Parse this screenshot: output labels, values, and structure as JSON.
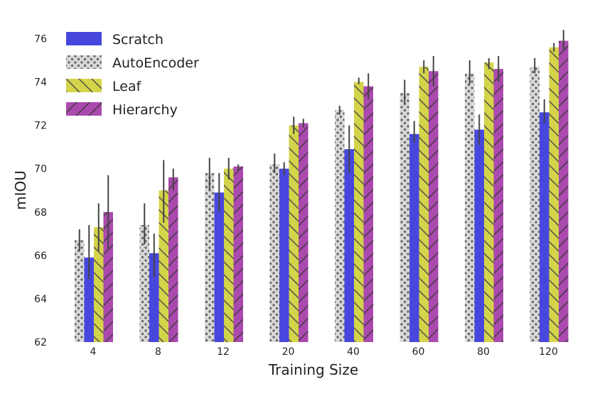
{
  "chart_data": {
    "type": "bar",
    "xlabel": "Training Size",
    "ylabel": "mIOU",
    "categories": [
      "4",
      "8",
      "12",
      "20",
      "40",
      "60",
      "80",
      "120"
    ],
    "ylim": [
      62,
      76.8
    ],
    "yticks": [
      62,
      64,
      66,
      68,
      70,
      72,
      74,
      76
    ],
    "grid": false,
    "legend_position": "top-left",
    "series": [
      {
        "name": "AutoEncoder",
        "color": "#d9d9d9",
        "pattern": "dots",
        "values": [
          66.7,
          67.4,
          69.8,
          70.2,
          72.7,
          73.5,
          74.4,
          74.7
        ],
        "err_low": [
          66.2,
          66.5,
          69.0,
          69.8,
          72.5,
          73.0,
          73.9,
          74.4
        ],
        "err_high": [
          67.2,
          68.4,
          70.5,
          70.7,
          72.9,
          74.1,
          75.0,
          75.1
        ]
      },
      {
        "name": "Scratch",
        "color": "#4747de",
        "pattern": "solid",
        "values": [
          65.9,
          66.1,
          68.9,
          70.0,
          70.9,
          71.6,
          71.8,
          72.6
        ],
        "err_low": [
          64.9,
          65.0,
          68.0,
          69.7,
          69.8,
          71.2,
          71.1,
          72.1
        ],
        "err_high": [
          67.4,
          67.0,
          69.8,
          70.3,
          72.0,
          72.2,
          72.5,
          73.2
        ]
      },
      {
        "name": "Leaf",
        "color": "#d4d44a",
        "pattern": "backslash",
        "values": [
          67.3,
          69.0,
          70.0,
          72.0,
          74.0,
          74.7,
          74.9,
          75.6
        ],
        "err_low": [
          66.2,
          67.5,
          69.5,
          71.6,
          73.9,
          74.4,
          74.6,
          75.4
        ],
        "err_high": [
          68.4,
          70.4,
          70.5,
          72.4,
          74.2,
          75.0,
          75.1,
          75.8
        ]
      },
      {
        "name": "Hierarchy",
        "color": "#aa4aae",
        "pattern": "slash",
        "values": [
          68.0,
          69.6,
          70.1,
          72.1,
          73.8,
          74.5,
          74.6,
          75.9
        ],
        "err_low": [
          66.3,
          69.0,
          69.9,
          71.9,
          73.2,
          73.8,
          74.0,
          75.5
        ],
        "err_high": [
          69.7,
          70.0,
          70.2,
          72.3,
          74.4,
          75.2,
          75.2,
          76.4
        ]
      }
    ],
    "legend_order": [
      "Scratch",
      "AutoEncoder",
      "Leaf",
      "Hierarchy"
    ]
  }
}
